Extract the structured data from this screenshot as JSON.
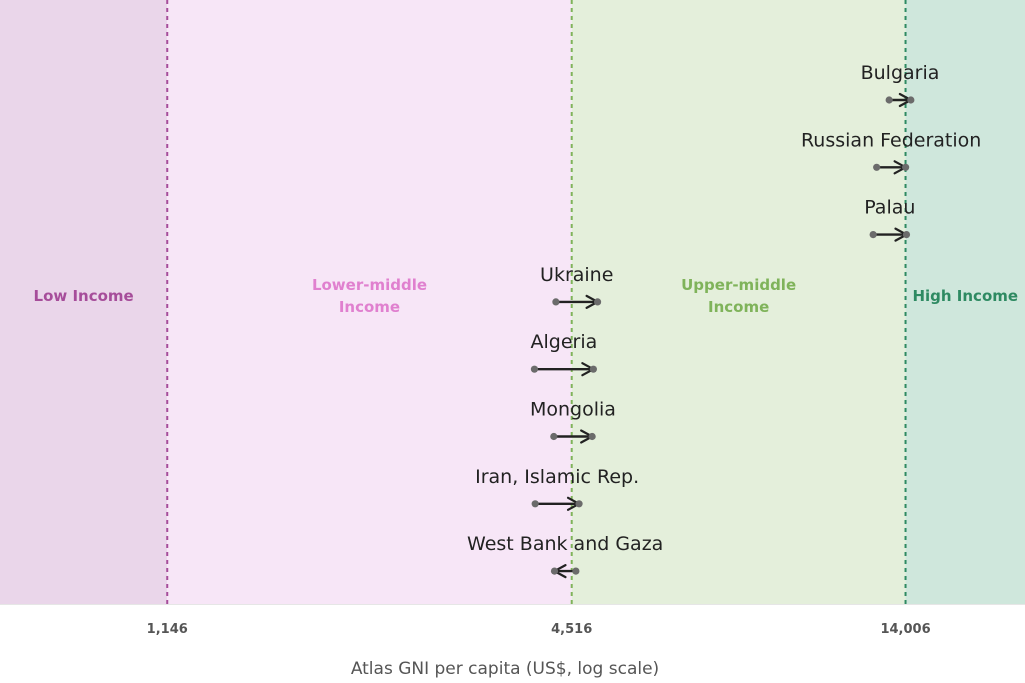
{
  "chart_data": {
    "type": "arrow-dot",
    "xlabel": "Atlas GNI per capita (US$, log scale)",
    "x_scale": "log",
    "xlim": [
      650,
      21000
    ],
    "thresholds": [
      {
        "value": 1146,
        "label": "1,146",
        "color": "#a64d9a"
      },
      {
        "value": 4516,
        "label": "4,516",
        "color": "#7fb35a"
      },
      {
        "value": 14006,
        "label": "14,006",
        "color": "#2e8a62"
      }
    ],
    "bands": [
      {
        "lines": [
          "Low Income"
        ],
        "from": 650,
        "to": 1146,
        "fill": "#ead6ea",
        "text_color": "#a64d9a"
      },
      {
        "lines": [
          "Lower-middle",
          "Income"
        ],
        "from": 1146,
        "to": 4516,
        "fill": "#f7e6f7",
        "text_color": "#e080cf"
      },
      {
        "lines": [
          "Upper-middle",
          "Income"
        ],
        "from": 4516,
        "to": 14006,
        "fill": "#e4efdb",
        "text_color": "#7fb35a"
      },
      {
        "lines": [
          "High Income"
        ],
        "from": 14006,
        "to": 21000,
        "fill": "#cfe7dc",
        "text_color": "#2e8a62"
      }
    ],
    "series": [
      {
        "label": "Bulgaria",
        "from": 13250,
        "to": 14260
      },
      {
        "label": "Russian Federation",
        "from": 12700,
        "to": 14010
      },
      {
        "label": "Palau",
        "from": 12550,
        "to": 14050
      },
      {
        "label": "Ukraine",
        "from": 4280,
        "to": 4930
      },
      {
        "label": "Algeria",
        "from": 3980,
        "to": 4860
      },
      {
        "label": "Mongolia",
        "from": 4250,
        "to": 4840
      },
      {
        "label": "Iran, Islamic Rep.",
        "from": 3990,
        "to": 4630
      },
      {
        "label": "West Bank and Gaza",
        "from": 4580,
        "to": 4260
      }
    ],
    "colors": {
      "arrow": "#222222",
      "dot": "#6b6b6b"
    }
  }
}
